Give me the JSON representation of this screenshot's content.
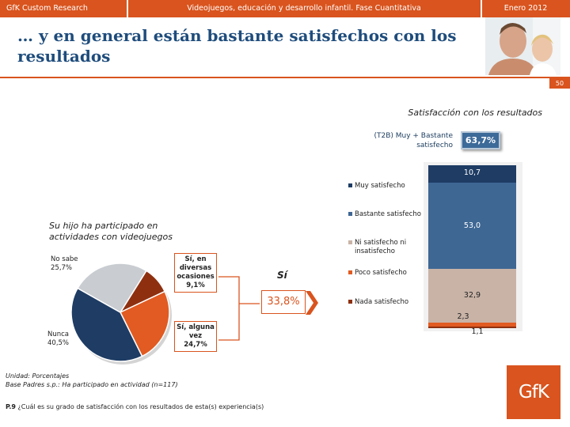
{
  "header": {
    "company": "GfK Custom Research",
    "study": "Videojuegos, educación y desarrollo infantil. Fase Cuantitativa",
    "date": "Enero 2012"
  },
  "title": "… y en general están bastante satisfechos con los resultados",
  "page_number": "50",
  "satisfaction": {
    "title": "Satisfacción con los resultados",
    "t2b_label_line1": "(T2B) Muy + Bastante",
    "t2b_label_line2": "satisfecho",
    "t2b_value": "63,7%"
  },
  "chart_data": [
    {
      "type": "bar",
      "stacked": true,
      "title": "Satisfacción con los resultados",
      "categories": [
        "Muy satisfecho",
        "Bastante satisfecho",
        "Ni satisfecho ni insatisfecho",
        "Poco satisfecho",
        "Nada satisfecho"
      ],
      "values": [
        10.7,
        53.0,
        32.9,
        2.3,
        1.1
      ],
      "value_labels": [
        "10,7",
        "53,0",
        "32,9",
        "2,3",
        "1,1"
      ],
      "colors": [
        "#1e3c64",
        "#3e6794",
        "#c9b3a7",
        "#e15b22",
        "#8e3010"
      ],
      "ylim": [
        0,
        100
      ]
    },
    {
      "type": "pie",
      "title": "Su hijo ha participado en actividades con videojuegos",
      "categories": [
        "Sí, en diversas ocasiones",
        "Sí, alguna vez",
        "Nunca",
        "No sabe"
      ],
      "values": [
        9.1,
        24.7,
        40.5,
        25.7
      ],
      "colors": [
        "#8e3010",
        "#e15b22",
        "#1e3c64",
        "#c9cdd2"
      ]
    }
  ],
  "legend": [
    {
      "label": "Muy satisfecho",
      "color": "#1e3c64"
    },
    {
      "label": "Bastante satisfecho",
      "color": "#3e6794"
    },
    {
      "label_line1": "Ni satisfecho ni",
      "label_line2": "insatisfecho",
      "color": "#c9b3a7"
    },
    {
      "label": "Poco satisfecho",
      "color": "#e15b22"
    },
    {
      "label": "Nada satisfecho",
      "color": "#8e3010"
    }
  ],
  "participation": {
    "question_line1": "Su hijo ha participado en",
    "question_line2": "actividades con videojuegos",
    "no_sabe_label": "No sabe",
    "no_sabe_value": "25,7%",
    "nunca_label": "Nunca",
    "nunca_value": "40,5%",
    "diversas_line1": "Sí, en",
    "diversas_line2": "diversas",
    "diversas_line3": "ocasiones",
    "diversas_value": "9,1%",
    "alguna_line1": "Sí, alguna",
    "alguna_line2": "vez",
    "alguna_value": "24,7%",
    "si_label": "Sí",
    "si_value": "33,8%"
  },
  "footnotes": {
    "unidad": "Unidad: Porcentajes",
    "base": "Base Padres s.p.: Ha participado en actividad (n=117)",
    "question_code": "P.9",
    "question_text": "¿Cuál es su grado de satisfacción con los resultados de esta(s) experiencia(s)"
  },
  "logo": "GfK"
}
